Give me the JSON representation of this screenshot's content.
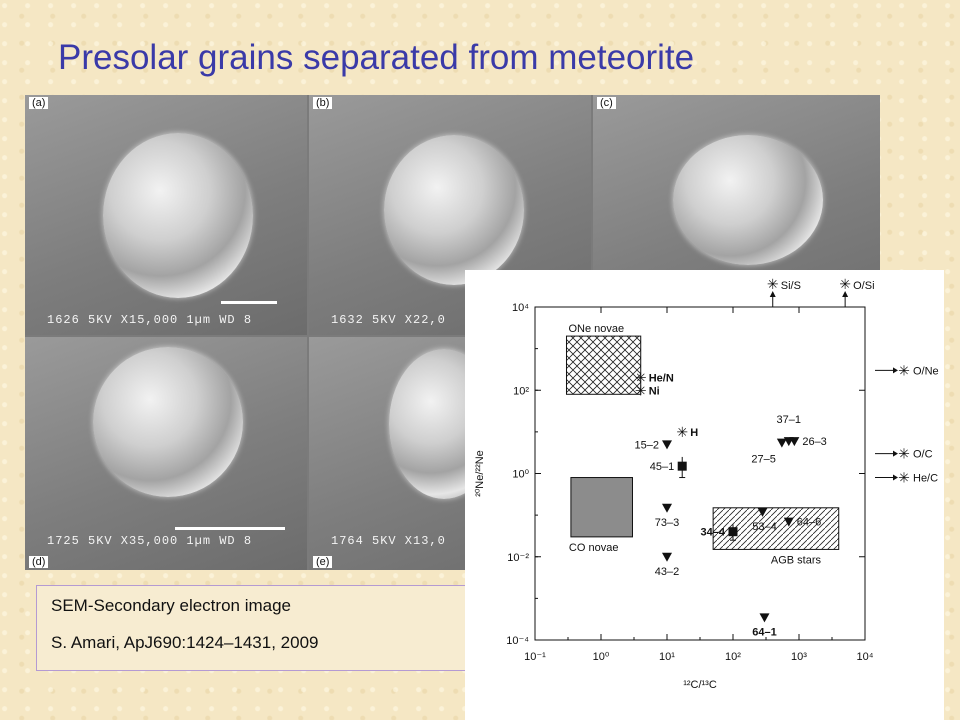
{
  "slide": {
    "title": "Presolar grains separated from meteorite"
  },
  "sem_panels": [
    {
      "label": "(a)",
      "info": "1626   5KV  X15,000  1µm WD 8"
    },
    {
      "label": "(b)",
      "info": "1632   5KV  X22,0"
    },
    {
      "label": "(c)",
      "info": ""
    },
    {
      "label": "(d)",
      "info": "1725   5KV  X35,000  1µm WD 8"
    },
    {
      "label": "(e)",
      "info": "1764   5KV  X13,0"
    }
  ],
  "caption": {
    "line1": "SEM-Secondary electron image",
    "line2": "S. Amari, ApJ690:1424–1431, 2009"
  },
  "chart_data": {
    "type": "scatter",
    "x_scale": "log",
    "y_scale": "log",
    "xlim": [
      0.1,
      10000
    ],
    "ylim": [
      0.0001,
      10000
    ],
    "x_ticks": [
      "10⁻¹",
      "10⁰",
      "10¹",
      "10²",
      "10³",
      "10⁴"
    ],
    "y_ticks": [
      "10⁻⁴",
      "10⁻²",
      "10⁰",
      "10²",
      "10⁴"
    ],
    "xlabel": "¹²C/¹³C",
    "ylabel": "²⁰Ne/²²Ne",
    "regions": [
      {
        "name": "ONe novae",
        "x": [
          0.3,
          4
        ],
        "y": [
          80,
          2000
        ],
        "fill": "crosshatch"
      },
      {
        "name": "CO novae",
        "x": [
          0.35,
          3
        ],
        "y": [
          0.03,
          0.8
        ],
        "fill": "#8c8c8c"
      },
      {
        "name": "AGB stars",
        "x": [
          50,
          4000
        ],
        "y": [
          0.015,
          0.15
        ],
        "fill": "hatch"
      }
    ],
    "points": [
      {
        "label": "15–2",
        "x": 10,
        "y": 5,
        "marker": "triangle"
      },
      {
        "label": "45–1",
        "x": 17,
        "y": 1.5,
        "marker": "square",
        "err_low": 0.8,
        "err_high": 2.5
      },
      {
        "label": "73–3",
        "x": 10,
        "y": 0.15,
        "marker": "triangle"
      },
      {
        "label": "43–2",
        "x": 10,
        "y": 0.01,
        "marker": "triangle"
      },
      {
        "label": "37–1",
        "x": 700,
        "y": 6,
        "marker": "triangle"
      },
      {
        "label": "27–5",
        "x": 550,
        "y": 5.5,
        "marker": "triangle"
      },
      {
        "label": "26–3",
        "x": 850,
        "y": 6,
        "marker": "triangle"
      },
      {
        "label": "53–4",
        "x": 280,
        "y": 0.12,
        "marker": "triangle"
      },
      {
        "label": "64–6",
        "x": 700,
        "y": 0.07,
        "marker": "triangle"
      },
      {
        "label": "34–4",
        "x": 100,
        "y": 0.04,
        "marker": "square",
        "err_low": 0.025,
        "err_high": 0.06
      },
      {
        "label": "64–1",
        "x": 300,
        "y": 0.00035,
        "marker": "triangle"
      }
    ],
    "annotations": [
      {
        "text": "He/N",
        "x": 4,
        "y": 200
      },
      {
        "text": "Ni",
        "x": 4,
        "y": 100
      },
      {
        "text": "H",
        "x": 17,
        "y": 10
      },
      {
        "text": "Si/S",
        "x": 400,
        "y": 10000
      },
      {
        "text": "O/Si",
        "x": 5000,
        "y": 10000
      },
      {
        "text": "O/Ne",
        "x": 10000,
        "y": 300
      },
      {
        "text": "O/C",
        "x": 10000,
        "y": 3
      },
      {
        "text": "He/C",
        "x": 10000,
        "y": 0.8
      }
    ]
  }
}
